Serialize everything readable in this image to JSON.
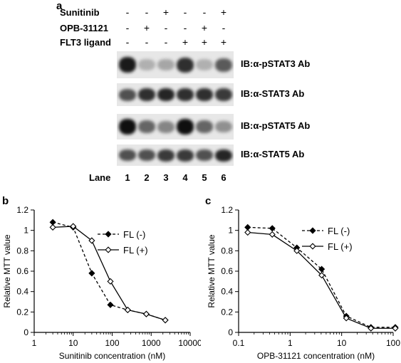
{
  "panel_a": {
    "letter": "a",
    "conditions": [
      {
        "label": "Sunitinib",
        "signs": [
          "-",
          "-",
          "+",
          "-",
          "-",
          "+"
        ]
      },
      {
        "label": "OPB-31121",
        "signs": [
          "-",
          "+",
          "-",
          "-",
          "+",
          "-"
        ]
      },
      {
        "label": "FLT3 ligand",
        "signs": [
          "-",
          "-",
          "-",
          "+",
          "+",
          "+"
        ]
      }
    ],
    "blots": [
      {
        "label": "IB:α-pSTAT3 Ab",
        "band_intensity": [
          0.95,
          0.25,
          0.3,
          0.85,
          0.25,
          0.65
        ]
      },
      {
        "label": "IB:α-STAT3 Ab",
        "band_intensity": [
          0.7,
          0.85,
          0.9,
          0.85,
          0.85,
          0.8
        ]
      },
      {
        "label": "IB:α-pSTAT5 Ab",
        "band_intensity": [
          1.0,
          0.6,
          0.45,
          1.0,
          0.6,
          0.4
        ]
      },
      {
        "label": "IB:α-STAT5 Ab",
        "band_intensity": [
          0.7,
          0.7,
          0.8,
          0.8,
          0.7,
          0.9
        ]
      }
    ],
    "lane_label": "Lane",
    "lanes": [
      "1",
      "2",
      "3",
      "4",
      "5",
      "6"
    ]
  },
  "chart_data": [
    {
      "panel": "b",
      "type": "line",
      "xlabel": "Sunitinib concentration (nM)",
      "ylabel": "Relative MTT value",
      "xscale": "log",
      "xlim": [
        1,
        10000
      ],
      "ylim": [
        0,
        1.2
      ],
      "xticks": [
        "1",
        "10",
        "100",
        "1000",
        "10000"
      ],
      "yticks": [
        "0",
        "0.2",
        "0.4",
        "0.6",
        "0.8",
        "1",
        "1.2"
      ],
      "legend_position": "top-right",
      "series": [
        {
          "name": "FL (-)",
          "marker": "filled-diamond",
          "style": "dashed",
          "x": [
            3,
            10,
            30,
            90,
            250,
            750,
            2300
          ],
          "y": [
            1.08,
            1.03,
            0.58,
            0.27,
            0.22,
            0.18,
            0.12
          ]
        },
        {
          "name": "FL (+)",
          "marker": "open-diamond",
          "style": "solid",
          "x": [
            3,
            10,
            30,
            90,
            250,
            750,
            2300
          ],
          "y": [
            1.03,
            1.04,
            0.9,
            0.5,
            0.22,
            0.18,
            0.12
          ]
        }
      ]
    },
    {
      "panel": "c",
      "type": "line",
      "xlabel": "OPB-31121 concentration (nM)",
      "ylabel": "Relative MTT value",
      "xscale": "log",
      "xlim": [
        0.1,
        100
      ],
      "ylim": [
        0,
        1.2
      ],
      "xticks": [
        "0.1",
        "1",
        "10",
        "100"
      ],
      "yticks": [
        "0",
        "0.2",
        "0.4",
        "0.6",
        "0.8",
        "1",
        "1.2"
      ],
      "legend_position": "top-right",
      "series": [
        {
          "name": "FL (-)",
          "marker": "filled-diamond",
          "style": "dashed",
          "x": [
            0.15,
            0.45,
            1.35,
            4.1,
            12.3,
            37,
            110
          ],
          "y": [
            1.03,
            1.02,
            0.83,
            0.62,
            0.16,
            0.05,
            0.05
          ]
        },
        {
          "name": "FL (+)",
          "marker": "open-diamond",
          "style": "solid",
          "x": [
            0.15,
            0.45,
            1.35,
            4.1,
            12.3,
            37,
            110
          ],
          "y": [
            0.98,
            0.96,
            0.8,
            0.56,
            0.14,
            0.04,
            0.04
          ]
        }
      ]
    }
  ]
}
